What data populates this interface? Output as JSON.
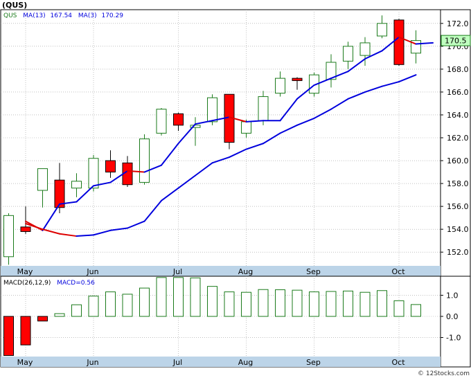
{
  "title": "(QUS)",
  "legend": {
    "symbol": "QUS",
    "ma13_label": "MA(13)",
    "ma13_value": "167.54",
    "ma3_label": "MA(3)",
    "ma3_value": "170.29"
  },
  "last_price_badge": "170.5",
  "macd_legend": {
    "label": "MACD(26,12,9)",
    "value_label": "MACD=0.56"
  },
  "watermark": "© 12Stocks.com",
  "colors": {
    "up_candle": "#1a7a1a",
    "down_candle": "#ff0000",
    "ma_line": "#0000dd",
    "ma_down_segment": "#dd0000",
    "axis_band": "#bcd4e8",
    "price_badge_bg": "#bfffbf"
  },
  "chart_data": [
    {
      "type": "candlestick",
      "title": "(QUS)",
      "xlabel": "",
      "ylabel": "",
      "ylim": [
        150.8,
        173.2
      ],
      "y_ticks": [
        152.0,
        154.0,
        156.0,
        158.0,
        160.0,
        162.0,
        164.0,
        166.0,
        168.0,
        170.0,
        172.0
      ],
      "x_tick_labels": [
        "May",
        "Jun",
        "Jul",
        "Aug",
        "Sep",
        "Oct"
      ],
      "x_tick_index": [
        1,
        5,
        10,
        14,
        18,
        23
      ],
      "grid": true,
      "candles": [
        {
          "o": 151.6,
          "h": 155.4,
          "l": 150.9,
          "c": 155.2
        },
        {
          "o": 154.2,
          "h": 156.0,
          "l": 153.6,
          "c": 153.8
        },
        {
          "o": 157.4,
          "h": 159.3,
          "l": 155.9,
          "c": 159.3
        },
        {
          "o": 158.3,
          "h": 159.8,
          "l": 155.4,
          "c": 155.9
        },
        {
          "o": 157.6,
          "h": 158.9,
          "l": 156.8,
          "c": 158.2
        },
        {
          "o": 157.6,
          "h": 160.5,
          "l": 157.3,
          "c": 160.2
        },
        {
          "o": 160.0,
          "h": 160.9,
          "l": 158.5,
          "c": 159.0
        },
        {
          "o": 159.8,
          "h": 160.4,
          "l": 157.7,
          "c": 157.9
        },
        {
          "o": 158.1,
          "h": 162.3,
          "l": 157.9,
          "c": 161.9
        },
        {
          "o": 162.4,
          "h": 164.6,
          "l": 162.2,
          "c": 164.5
        },
        {
          "o": 164.1,
          "h": 164.2,
          "l": 162.6,
          "c": 163.1
        },
        {
          "o": 162.9,
          "h": 163.8,
          "l": 161.3,
          "c": 163.1
        },
        {
          "o": 163.4,
          "h": 165.8,
          "l": 163.1,
          "c": 165.5
        },
        {
          "o": 165.8,
          "h": 165.8,
          "l": 161.0,
          "c": 161.6
        },
        {
          "o": 162.4,
          "h": 163.6,
          "l": 162.0,
          "c": 163.4
        },
        {
          "o": 163.5,
          "h": 166.1,
          "l": 163.1,
          "c": 165.6
        },
        {
          "o": 165.9,
          "h": 167.8,
          "l": 165.6,
          "c": 167.2
        },
        {
          "o": 167.2,
          "h": 167.3,
          "l": 166.2,
          "c": 167.0
        },
        {
          "o": 165.9,
          "h": 167.7,
          "l": 165.6,
          "c": 167.5
        },
        {
          "o": 167.1,
          "h": 169.3,
          "l": 166.4,
          "c": 168.6
        },
        {
          "o": 168.7,
          "h": 170.4,
          "l": 168.0,
          "c": 170.0
        },
        {
          "o": 169.2,
          "h": 170.8,
          "l": 168.3,
          "c": 170.3
        },
        {
          "o": 170.9,
          "h": 172.7,
          "l": 170.7,
          "c": 172.0
        },
        {
          "o": 172.3,
          "h": 172.4,
          "l": 168.3,
          "c": 168.4
        },
        {
          "o": 169.4,
          "h": 171.4,
          "l": 168.5,
          "c": 170.5
        }
      ],
      "series": [
        {
          "name": "MA(3)",
          "start_index": 1,
          "values": [
            154.7,
            153.9,
            156.2,
            156.4,
            157.8,
            158.1,
            159.1,
            159.0,
            159.6,
            161.5,
            163.2,
            163.5,
            163.8,
            163.4,
            163.5,
            163.5,
            165.4,
            166.6,
            167.2,
            167.8,
            168.9,
            169.6,
            170.8,
            170.2,
            170.3
          ]
        },
        {
          "name": "MA(13)",
          "start_index": 1,
          "values": [
            154.5,
            154.0,
            153.6,
            153.4,
            153.5,
            153.9,
            154.1,
            154.7,
            156.5,
            157.6,
            158.7,
            159.8,
            160.3,
            161.0,
            161.5,
            162.4,
            163.1,
            163.7,
            164.5,
            165.4,
            166.0,
            166.5,
            166.9,
            167.5
          ]
        }
      ]
    },
    {
      "type": "bar",
      "title": "MACD(26,12,9)",
      "xlabel": "",
      "ylabel": "",
      "ylim": [
        -1.9,
        1.9
      ],
      "y_ticks": [
        -1.0,
        0.0,
        1.0
      ],
      "x_tick_labels": [
        "May",
        "Jun",
        "Jul",
        "Aug",
        "Sep",
        "Oct"
      ],
      "grid": true,
      "values": [
        -1.85,
        -1.35,
        -0.22,
        0.13,
        0.55,
        0.96,
        1.16,
        1.05,
        1.34,
        1.84,
        1.84,
        1.82,
        1.42,
        1.16,
        1.14,
        1.27,
        1.26,
        1.24,
        1.16,
        1.18,
        1.2,
        1.14,
        1.22,
        0.74,
        0.56
      ]
    }
  ]
}
